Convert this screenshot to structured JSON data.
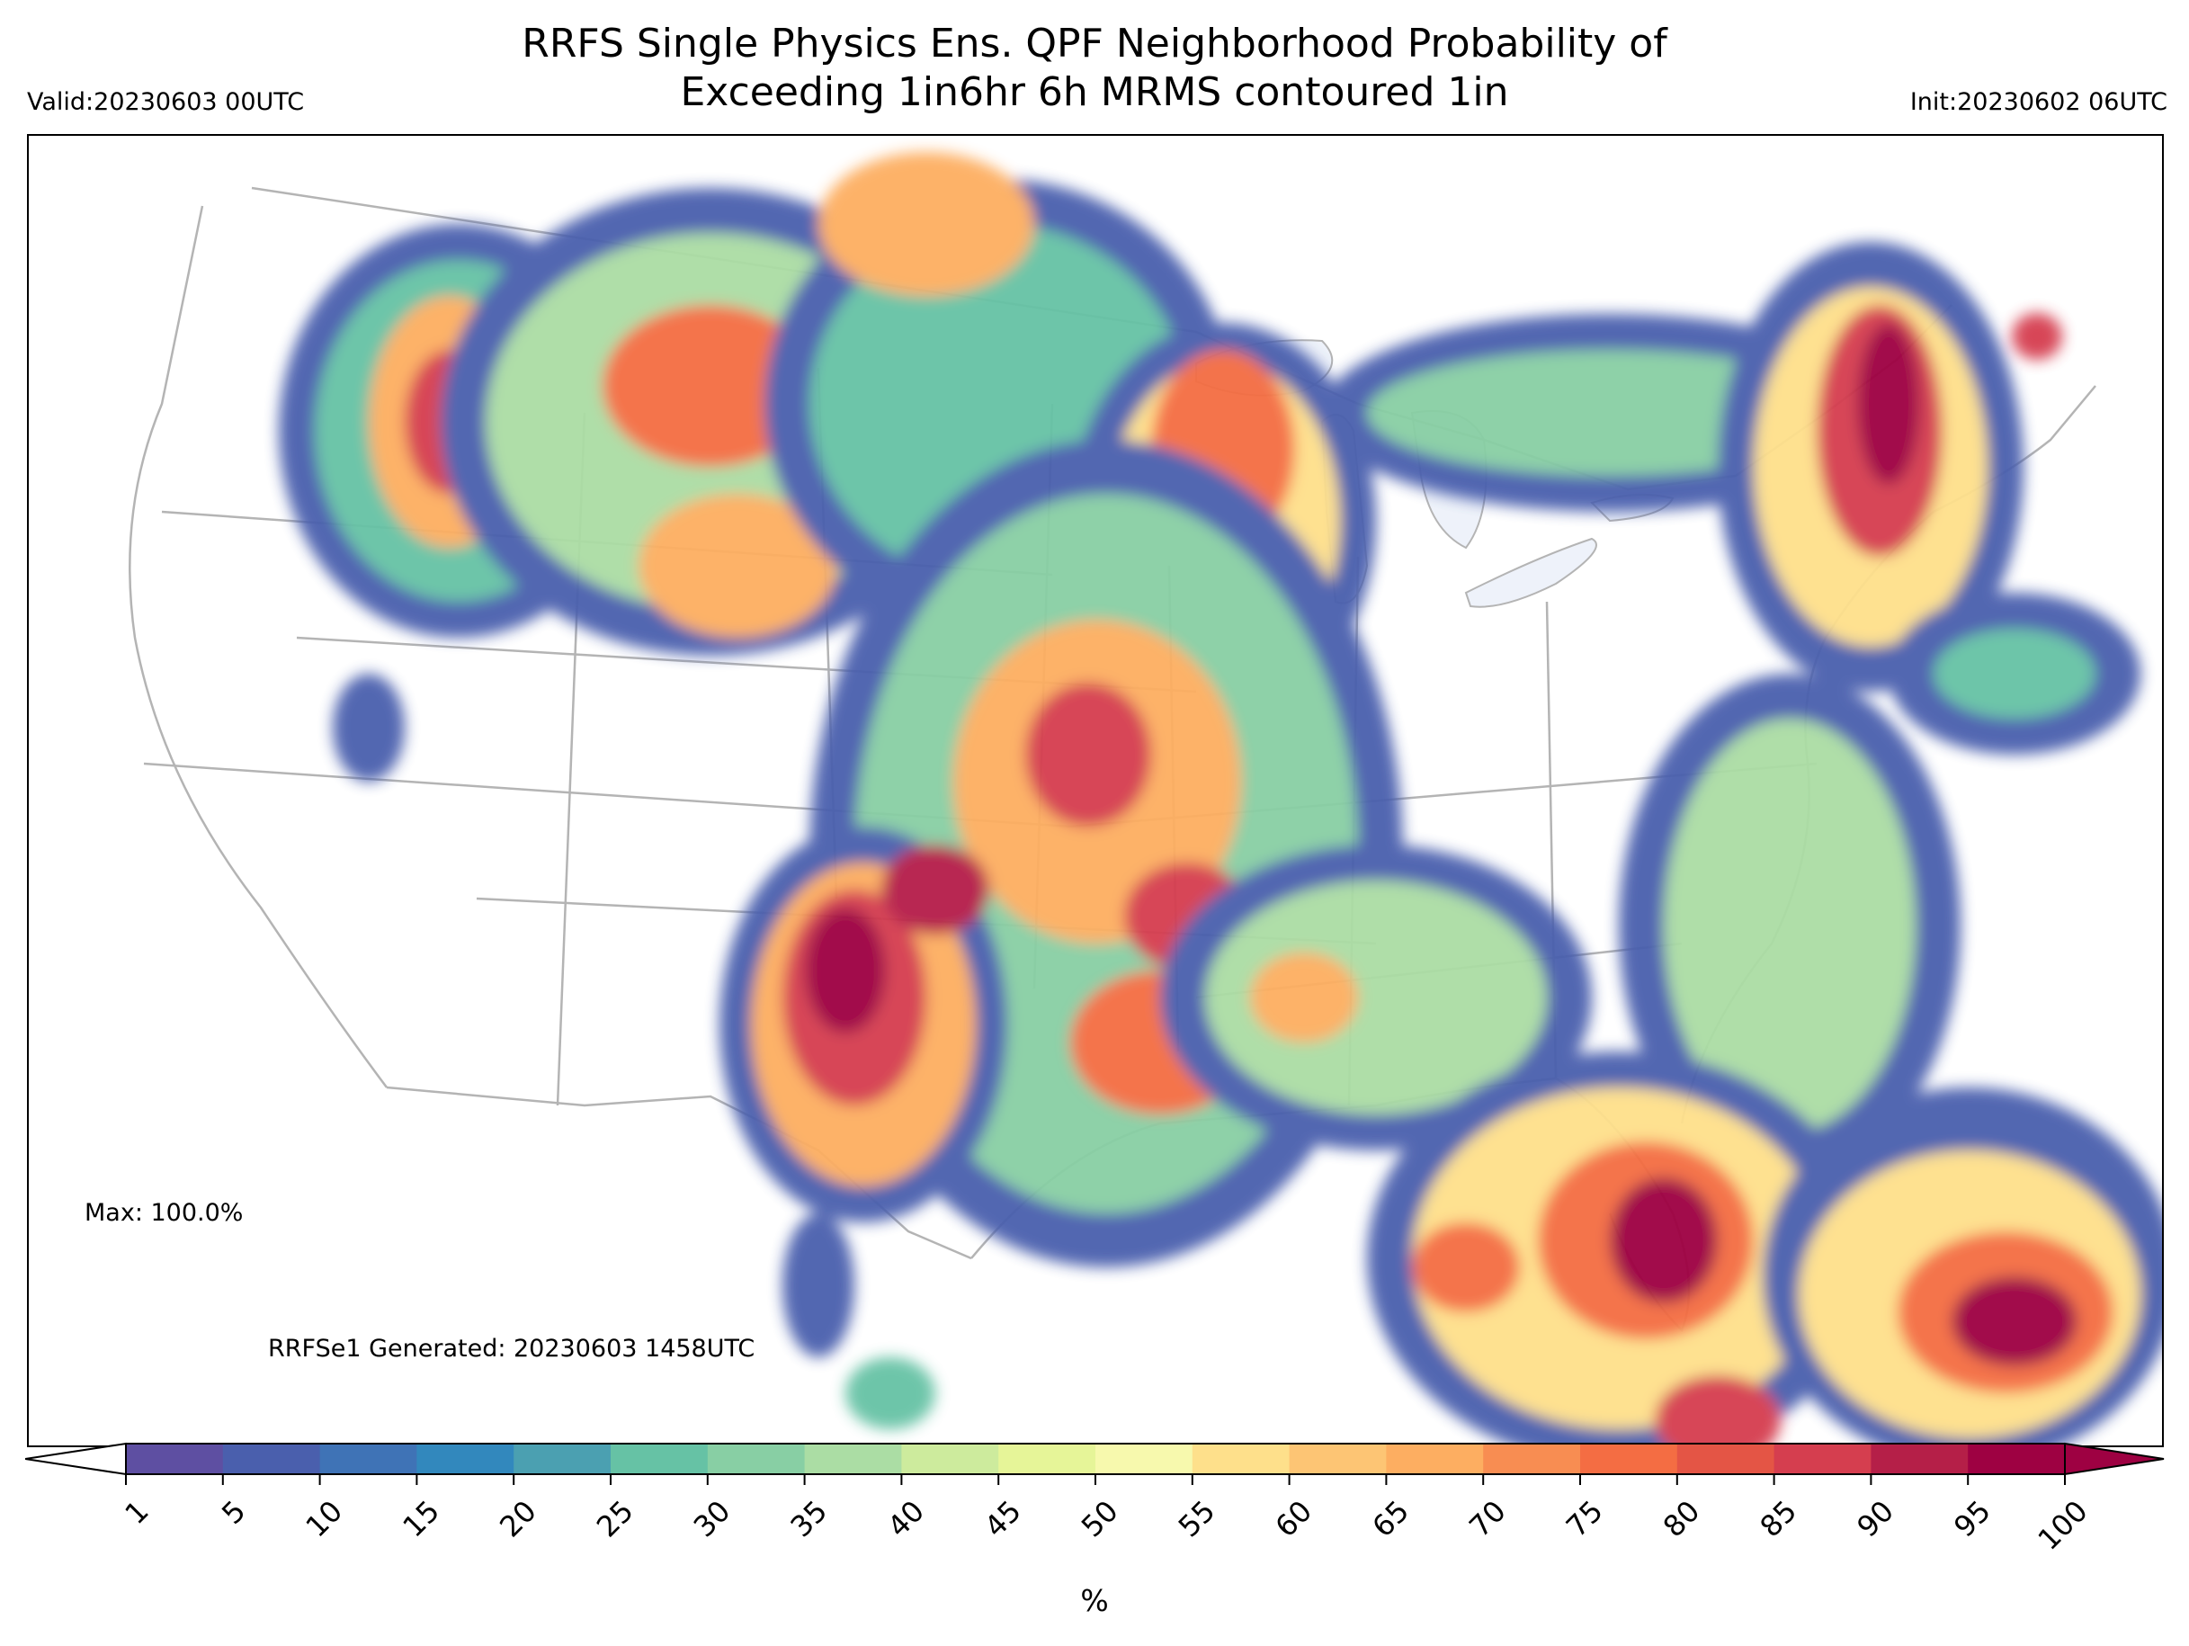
{
  "title": {
    "line1": "RRFS Single Physics Ens. QPF Neighborhood Probability of",
    "line2": "Exceeding 1in6hr 6h MRMS contoured 1in"
  },
  "valid_label": "Valid:20230603 00UTC",
  "init_label": "Init:20230602 06UTC",
  "max_label": "Max: 100.0%",
  "generated_label": "RRFSe1 Generated: 20230603 1458UTC",
  "colorbar": {
    "unit": "%",
    "ticks": [
      "1",
      "5",
      "10",
      "15",
      "20",
      "25",
      "30",
      "35",
      "40",
      "45",
      "50",
      "55",
      "60",
      "65",
      "70",
      "75",
      "80",
      "85",
      "90",
      "95",
      "100"
    ],
    "colors": [
      "#5e4fa2",
      "#4a5fad",
      "#3f73b6",
      "#3288bd",
      "#4ba0b1",
      "#66c2a5",
      "#88cfa4",
      "#abdda4",
      "#cdeb9d",
      "#e6f598",
      "#f7f9ad",
      "#fee08b",
      "#fdc574",
      "#fdae61",
      "#f88d52",
      "#f46d43",
      "#e45545",
      "#d53e4f",
      "#b51f48",
      "#9e0142"
    ],
    "extend_low_color": "#ffffff",
    "extend_high_color": "#9e0142"
  },
  "map": {
    "background_color": "#ffffff",
    "border_color": "#b4b4b4",
    "lake_color": "#eef2fa"
  }
}
